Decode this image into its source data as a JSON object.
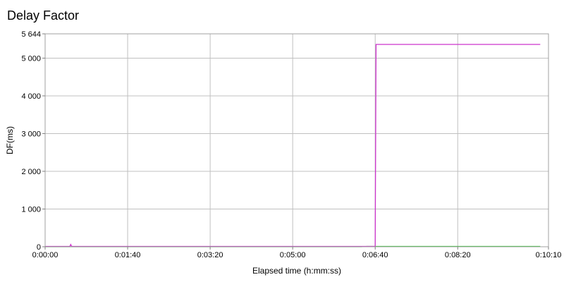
{
  "chart_data": {
    "type": "line",
    "title": "Delay Factor",
    "xlabel": "Elapsed time (h:mm:ss)",
    "ylabel": "DF(ms)",
    "x_unit": "seconds",
    "xlim": [
      0,
      610
    ],
    "ylim": [
      0,
      5644
    ],
    "x_ticks": [
      {
        "value": 0,
        "label": "0:00:00"
      },
      {
        "value": 100,
        "label": "0:01:40"
      },
      {
        "value": 200,
        "label": "0:03:20"
      },
      {
        "value": 300,
        "label": "0:05:00"
      },
      {
        "value": 400,
        "label": "0:06:40"
      },
      {
        "value": 500,
        "label": "0:08:20"
      },
      {
        "value": 610,
        "label": "0:10:10"
      }
    ],
    "y_ticks": [
      {
        "value": 0,
        "label": "0"
      },
      {
        "value": 1000,
        "label": "1 000"
      },
      {
        "value": 2000,
        "label": "2 000"
      },
      {
        "value": 3000,
        "label": "3 000"
      },
      {
        "value": 4000,
        "label": "4 000"
      },
      {
        "value": 5000,
        "label": "5 000"
      },
      {
        "value": 5644,
        "label": "5 644"
      }
    ],
    "grid": true,
    "series": [
      {
        "color": "#cc33cc",
        "x": [
          0,
          30,
          31,
          32,
          33,
          399,
          400,
          401,
          600
        ],
        "y": [
          10,
          10,
          60,
          15,
          10,
          10,
          10,
          5364,
          5364
        ]
      },
      {
        "color": "#33cc33",
        "x": [
          0,
          383,
          390,
          600
        ],
        "y": [
          0,
          0,
          10,
          10
        ]
      }
    ]
  }
}
